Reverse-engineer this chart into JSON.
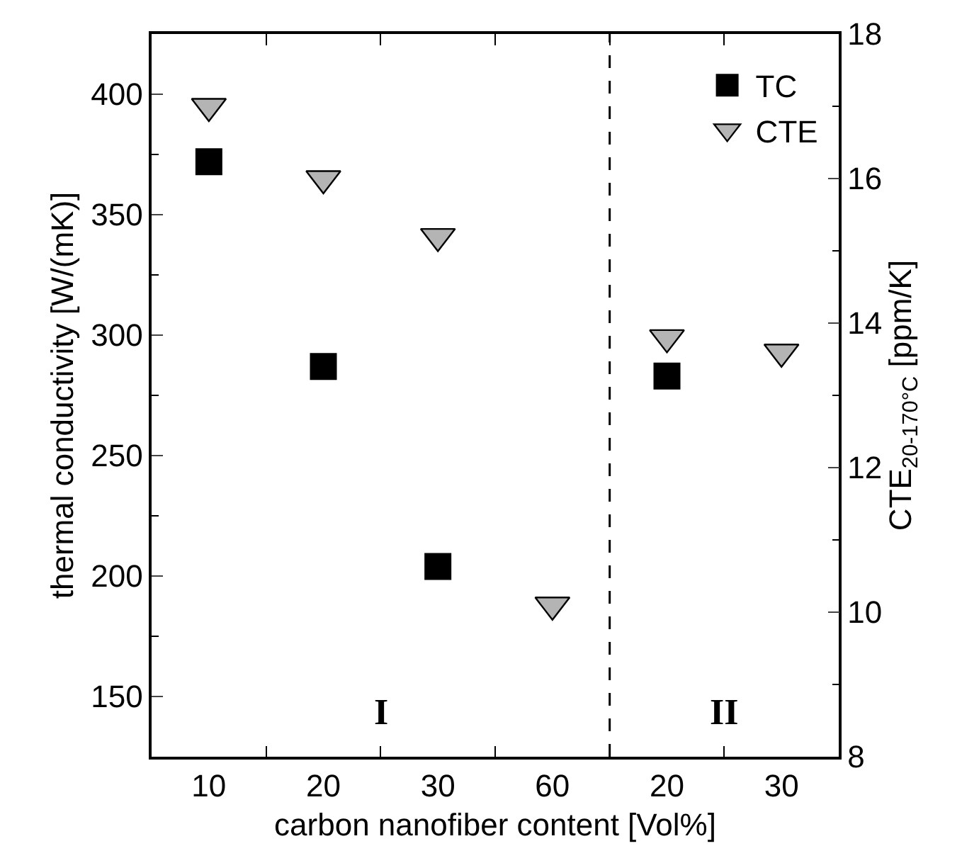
{
  "chart_data": {
    "type": "scatter",
    "xlabel": "carbon nanofiber content [Vol%]",
    "ylabel": "thermal conductivity [W/(mK)]",
    "y2label": "CTE$_{20-170°C}$ [ppm/K]",
    "categories": [
      "10",
      "20",
      "30",
      "60",
      "20",
      "30"
    ],
    "series": [
      {
        "name": "TC",
        "color": "#000000",
        "marker": "square",
        "values": [
          372,
          287,
          204,
          null,
          283,
          null
        ]
      },
      {
        "name": "CTE",
        "color": "#b4b4b4",
        "marker": "triangle",
        "axis": "y2",
        "values": [
          17.0,
          16.0,
          15.2,
          10.1,
          13.8,
          13.6
        ]
      }
    ],
    "ylim": [
      125,
      425
    ],
    "yticks": [
      150,
      200,
      250,
      300,
      350,
      400
    ],
    "y2lim": [
      8,
      18
    ],
    "y2ticks": [
      8,
      10,
      12,
      14,
      16,
      18
    ],
    "annotations": [
      "I",
      "II"
    ],
    "legend": "top right"
  }
}
